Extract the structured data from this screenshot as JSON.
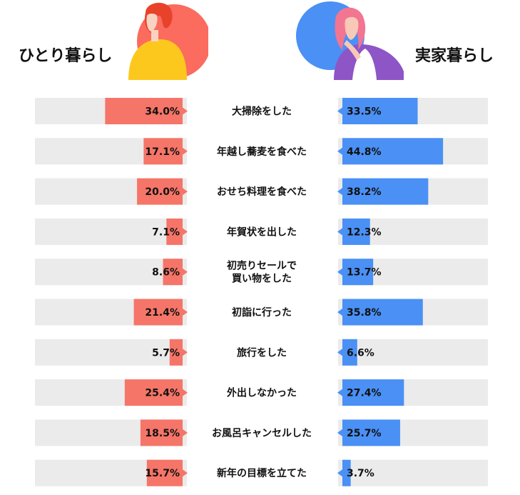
{
  "header": {
    "left_label": "ひとり暮らし",
    "right_label": "実家暮らし"
  },
  "colors": {
    "left_bar": "#f57568",
    "right_bar": "#4a90f5",
    "track": "#ebebeb",
    "left_avatar_bg": "#fb6b5e",
    "right_avatar_bg": "#4a90f5"
  },
  "chart_data": {
    "type": "bar",
    "layout": "butterfly",
    "value_unit": "%",
    "xlim": [
      0,
      100
    ],
    "categories": [
      [
        "大掃除をした"
      ],
      [
        "年越し蕎麦を食べた"
      ],
      [
        "おせち料理を食べた"
      ],
      [
        "年賀状を出した"
      ],
      [
        "初売りセールで",
        "買い物をした"
      ],
      [
        "初詣に行った"
      ],
      [
        "旅行をした"
      ],
      [
        "外出しなかった"
      ],
      [
        "お風呂キャンセルした"
      ],
      [
        "新年の目標を立てた"
      ]
    ],
    "series": [
      {
        "name": "ひとり暮らし",
        "side": "left",
        "values": [
          34.0,
          17.1,
          20.0,
          7.1,
          8.6,
          21.4,
          5.7,
          25.4,
          18.5,
          15.7
        ],
        "labels": [
          "34.0%",
          "17.1%",
          "20.0%",
          "7.1%",
          "8.6%",
          "21.4%",
          "5.7%",
          "25.4%",
          "18.5%",
          "15.7%"
        ]
      },
      {
        "name": "実家暮らし",
        "side": "right",
        "values": [
          33.5,
          44.8,
          38.2,
          12.3,
          13.7,
          35.8,
          6.6,
          27.4,
          25.7,
          3.7
        ],
        "labels": [
          "33.5%",
          "44.8%",
          "38.2%",
          "12.3%",
          "13.7%",
          "35.8%",
          "6.6%",
          "27.4%",
          "25.7%",
          "3.7%"
        ]
      }
    ]
  }
}
